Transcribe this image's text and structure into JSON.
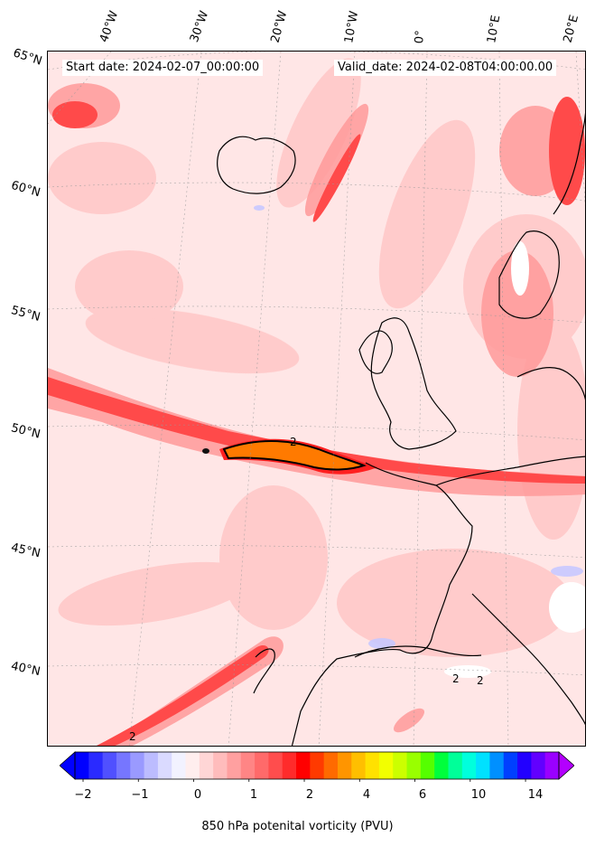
{
  "header": {
    "start_date": "Start date: 2024-02-07_00:00:00",
    "valid_date": "Valid_date: 2024-02-08T04:00:00.00"
  },
  "longitude_labels": [
    "40°W",
    "30°W",
    "20°W",
    "10°W",
    "0°",
    "10°E",
    "20°E"
  ],
  "latitude_labels": [
    "65°N",
    "60°N",
    "55°N",
    "50°N",
    "45°N",
    "40°N"
  ],
  "contour_label": "2",
  "colorbar": {
    "title": "850 hPa potenital vorticity (PVU)",
    "tick_labels": [
      "−2",
      "−1",
      "0",
      "1",
      "2",
      "4",
      "6",
      "10",
      "14"
    ],
    "colors": [
      "#0000ff",
      "#2a2aff",
      "#5050ff",
      "#7676ff",
      "#9a9aff",
      "#bcbcff",
      "#dadaff",
      "#f2f2ff",
      "#ffeeee",
      "#ffd6d6",
      "#ffbcbc",
      "#ffa0a0",
      "#ff8585",
      "#ff6a6a",
      "#ff4d4d",
      "#ff2b2b",
      "#ff0000",
      "#ff3a00",
      "#ff6a00",
      "#ff9500",
      "#ffbf00",
      "#ffe100",
      "#f2ff00",
      "#ccff00",
      "#99ff00",
      "#55ff00",
      "#00ff3c",
      "#00ff99",
      "#00ffdd",
      "#00e1ff",
      "#0090ff",
      "#0040ff",
      "#2200ff",
      "#6200ff",
      "#9a00ff"
    ],
    "under_color": "#0000ff",
    "over_color": "#b300ff"
  }
}
